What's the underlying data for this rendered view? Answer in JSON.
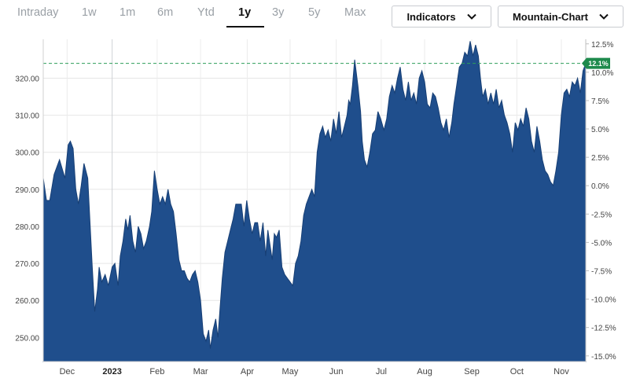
{
  "range_tabs": [
    {
      "label": "Intraday",
      "active": false
    },
    {
      "label": "1w",
      "active": false
    },
    {
      "label": "1m",
      "active": false
    },
    {
      "label": "6m",
      "active": false
    },
    {
      "label": "Ytd",
      "active": false
    },
    {
      "label": "1y",
      "active": true
    },
    {
      "label": "3y",
      "active": false
    },
    {
      "label": "5y",
      "active": false
    },
    {
      "label": "Max",
      "active": false
    }
  ],
  "toolbar": {
    "indicators_label": "Indicators",
    "chart_type_label": "Mountain-Chart",
    "dropdown_icon": "chevron-down-icon"
  },
  "colors": {
    "area_fill": "#1f4e8c",
    "reference_line": "#2e9e5b",
    "current_badge": "#1e8a4c"
  },
  "current_badge": {
    "label": "12.1%"
  },
  "chart_data": {
    "type": "area",
    "title": "",
    "xlabel": "",
    "ylabel": "",
    "ylim": [
      243.5,
      330.5
    ],
    "y2lim": [
      -15.5,
      12.9
    ],
    "left_ticks": [
      250,
      260,
      270,
      280,
      290,
      300,
      310,
      320
    ],
    "left_tick_labels": [
      "250.00",
      "260.00",
      "270.00",
      "280.00",
      "290.00",
      "300.00",
      "310.00",
      "320.00"
    ],
    "right_ticks": [
      -15,
      -12.5,
      -10,
      -7.5,
      -5,
      -2.5,
      0,
      2.5,
      5,
      7.5,
      10,
      12.5
    ],
    "right_tick_labels": [
      "-15.0%",
      "-12.5%",
      "-10.0%",
      "-7.5%",
      "-5.0%",
      "-2.5%",
      "0.0%",
      "2.5%",
      "5.0%",
      "7.5%",
      "10.0%",
      "12.5%"
    ],
    "reference_value": 324,
    "grid": true,
    "x_labels": [
      {
        "label": "Dec",
        "t": 0.044,
        "bold": false
      },
      {
        "label": "2023",
        "t": 0.127,
        "bold": true,
        "divider": true
      },
      {
        "label": "Feb",
        "t": 0.21,
        "bold": false
      },
      {
        "label": "Mar",
        "t": 0.29,
        "bold": false
      },
      {
        "label": "Apr",
        "t": 0.376,
        "bold": false
      },
      {
        "label": "May",
        "t": 0.455,
        "bold": false
      },
      {
        "label": "Jun",
        "t": 0.54,
        "bold": false
      },
      {
        "label": "Jul",
        "t": 0.623,
        "bold": false
      },
      {
        "label": "Aug",
        "t": 0.703,
        "bold": false
      },
      {
        "label": "Sep",
        "t": 0.79,
        "bold": false
      },
      {
        "label": "Oct",
        "t": 0.873,
        "bold": false
      },
      {
        "label": "Nov",
        "t": 0.955,
        "bold": false
      }
    ],
    "series": [
      {
        "values": [
          [
            0.0,
            293
          ],
          [
            0.006,
            287
          ],
          [
            0.012,
            287
          ],
          [
            0.02,
            294
          ],
          [
            0.03,
            298
          ],
          [
            0.04,
            293
          ],
          [
            0.046,
            302
          ],
          [
            0.05,
            303
          ],
          [
            0.055,
            301
          ],
          [
            0.06,
            290
          ],
          [
            0.065,
            286
          ],
          [
            0.07,
            291
          ],
          [
            0.075,
            297
          ],
          [
            0.082,
            293
          ],
          [
            0.09,
            270
          ],
          [
            0.095,
            257
          ],
          [
            0.1,
            263
          ],
          [
            0.103,
            269
          ],
          [
            0.108,
            265
          ],
          [
            0.114,
            267
          ],
          [
            0.12,
            264
          ],
          [
            0.127,
            269
          ],
          [
            0.132,
            270
          ],
          [
            0.138,
            264
          ],
          [
            0.142,
            272
          ],
          [
            0.147,
            276
          ],
          [
            0.152,
            282
          ],
          [
            0.156,
            279
          ],
          [
            0.16,
            283
          ],
          [
            0.165,
            276
          ],
          [
            0.17,
            273
          ],
          [
            0.175,
            280
          ],
          [
            0.18,
            278
          ],
          [
            0.185,
            274
          ],
          [
            0.19,
            276
          ],
          [
            0.196,
            280
          ],
          [
            0.2,
            284
          ],
          [
            0.205,
            295
          ],
          [
            0.21,
            290
          ],
          [
            0.215,
            286
          ],
          [
            0.22,
            288
          ],
          [
            0.225,
            286
          ],
          [
            0.23,
            290
          ],
          [
            0.235,
            286
          ],
          [
            0.24,
            284
          ],
          [
            0.245,
            278
          ],
          [
            0.25,
            271
          ],
          [
            0.255,
            268
          ],
          [
            0.26,
            268
          ],
          [
            0.265,
            266
          ],
          [
            0.27,
            265
          ],
          [
            0.275,
            267
          ],
          [
            0.28,
            268
          ],
          [
            0.285,
            265
          ],
          [
            0.29,
            260
          ],
          [
            0.295,
            251
          ],
          [
            0.3,
            249
          ],
          [
            0.305,
            252
          ],
          [
            0.308,
            247
          ],
          [
            0.313,
            252
          ],
          [
            0.318,
            255
          ],
          [
            0.322,
            250
          ],
          [
            0.326,
            258
          ],
          [
            0.33,
            266
          ],
          [
            0.335,
            273
          ],
          [
            0.34,
            276
          ],
          [
            0.345,
            279
          ],
          [
            0.35,
            282
          ],
          [
            0.355,
            286
          ],
          [
            0.36,
            286
          ],
          [
            0.365,
            286
          ],
          [
            0.37,
            280
          ],
          [
            0.375,
            287
          ],
          [
            0.38,
            282
          ],
          [
            0.385,
            278
          ],
          [
            0.39,
            281
          ],
          [
            0.395,
            281
          ],
          [
            0.4,
            276
          ],
          [
            0.405,
            281
          ],
          [
            0.41,
            272
          ],
          [
            0.414,
            279
          ],
          [
            0.418,
            275
          ],
          [
            0.422,
            271
          ],
          [
            0.426,
            278
          ],
          [
            0.43,
            277
          ],
          [
            0.435,
            279
          ],
          [
            0.44,
            269
          ],
          [
            0.445,
            267
          ],
          [
            0.45,
            266
          ],
          [
            0.455,
            265
          ],
          [
            0.46,
            264
          ],
          [
            0.465,
            270
          ],
          [
            0.47,
            272
          ],
          [
            0.475,
            276
          ],
          [
            0.48,
            283
          ],
          [
            0.485,
            286
          ],
          [
            0.49,
            288
          ],
          [
            0.495,
            290
          ],
          [
            0.5,
            288
          ],
          [
            0.505,
            300
          ],
          [
            0.51,
            305
          ],
          [
            0.515,
            307
          ],
          [
            0.52,
            304
          ],
          [
            0.525,
            306
          ],
          [
            0.53,
            303
          ],
          [
            0.535,
            309
          ],
          [
            0.54,
            305
          ],
          [
            0.545,
            311
          ],
          [
            0.55,
            304
          ],
          [
            0.555,
            307
          ],
          [
            0.56,
            310
          ],
          [
            0.563,
            314
          ],
          [
            0.566,
            313
          ],
          [
            0.57,
            318
          ],
          [
            0.574,
            325
          ],
          [
            0.58,
            318
          ],
          [
            0.585,
            311
          ],
          [
            0.588,
            303
          ],
          [
            0.592,
            298
          ],
          [
            0.597,
            296
          ],
          [
            0.602,
            300
          ],
          [
            0.607,
            305
          ],
          [
            0.612,
            306
          ],
          [
            0.617,
            311
          ],
          [
            0.622,
            309
          ],
          [
            0.628,
            306
          ],
          [
            0.633,
            309
          ],
          [
            0.638,
            315
          ],
          [
            0.643,
            318
          ],
          [
            0.648,
            316
          ],
          [
            0.653,
            320
          ],
          [
            0.658,
            323
          ],
          [
            0.663,
            317
          ],
          [
            0.668,
            314
          ],
          [
            0.673,
            319
          ],
          [
            0.678,
            314
          ],
          [
            0.683,
            316
          ],
          [
            0.688,
            313
          ],
          [
            0.693,
            320
          ],
          [
            0.698,
            322
          ],
          [
            0.703,
            319
          ],
          [
            0.708,
            313
          ],
          [
            0.713,
            312
          ],
          [
            0.718,
            316
          ],
          [
            0.723,
            315
          ],
          [
            0.728,
            312
          ],
          [
            0.733,
            308
          ],
          [
            0.738,
            306
          ],
          [
            0.743,
            309
          ],
          [
            0.748,
            304
          ],
          [
            0.753,
            308
          ],
          [
            0.757,
            313
          ],
          [
            0.762,
            318
          ],
          [
            0.767,
            323
          ],
          [
            0.772,
            324
          ],
          [
            0.777,
            327
          ],
          [
            0.782,
            326
          ],
          [
            0.787,
            330
          ],
          [
            0.792,
            326
          ],
          [
            0.797,
            329
          ],
          [
            0.802,
            326
          ],
          [
            0.806,
            320
          ],
          [
            0.81,
            315
          ],
          [
            0.815,
            317
          ],
          [
            0.82,
            313
          ],
          [
            0.825,
            316
          ],
          [
            0.83,
            313
          ],
          [
            0.835,
            317
          ],
          [
            0.84,
            312
          ],
          [
            0.845,
            314
          ],
          [
            0.85,
            310
          ],
          [
            0.855,
            308
          ],
          [
            0.86,
            305
          ],
          [
            0.865,
            300
          ],
          [
            0.87,
            308
          ],
          [
            0.875,
            306
          ],
          [
            0.88,
            309
          ],
          [
            0.885,
            307
          ],
          [
            0.89,
            312
          ],
          [
            0.895,
            309
          ],
          [
            0.9,
            303
          ],
          [
            0.905,
            300
          ],
          [
            0.91,
            307
          ],
          [
            0.915,
            303
          ],
          [
            0.92,
            298
          ],
          [
            0.925,
            295
          ],
          [
            0.93,
            294
          ],
          [
            0.935,
            292
          ],
          [
            0.94,
            291
          ],
          [
            0.945,
            295
          ],
          [
            0.95,
            300
          ],
          [
            0.955,
            310
          ],
          [
            0.96,
            316
          ],
          [
            0.965,
            317
          ],
          [
            0.97,
            315
          ],
          [
            0.975,
            319
          ],
          [
            0.98,
            318
          ],
          [
            0.985,
            320
          ],
          [
            0.99,
            316
          ],
          [
            0.995,
            322
          ],
          [
            1.0,
            324
          ]
        ]
      }
    ]
  }
}
